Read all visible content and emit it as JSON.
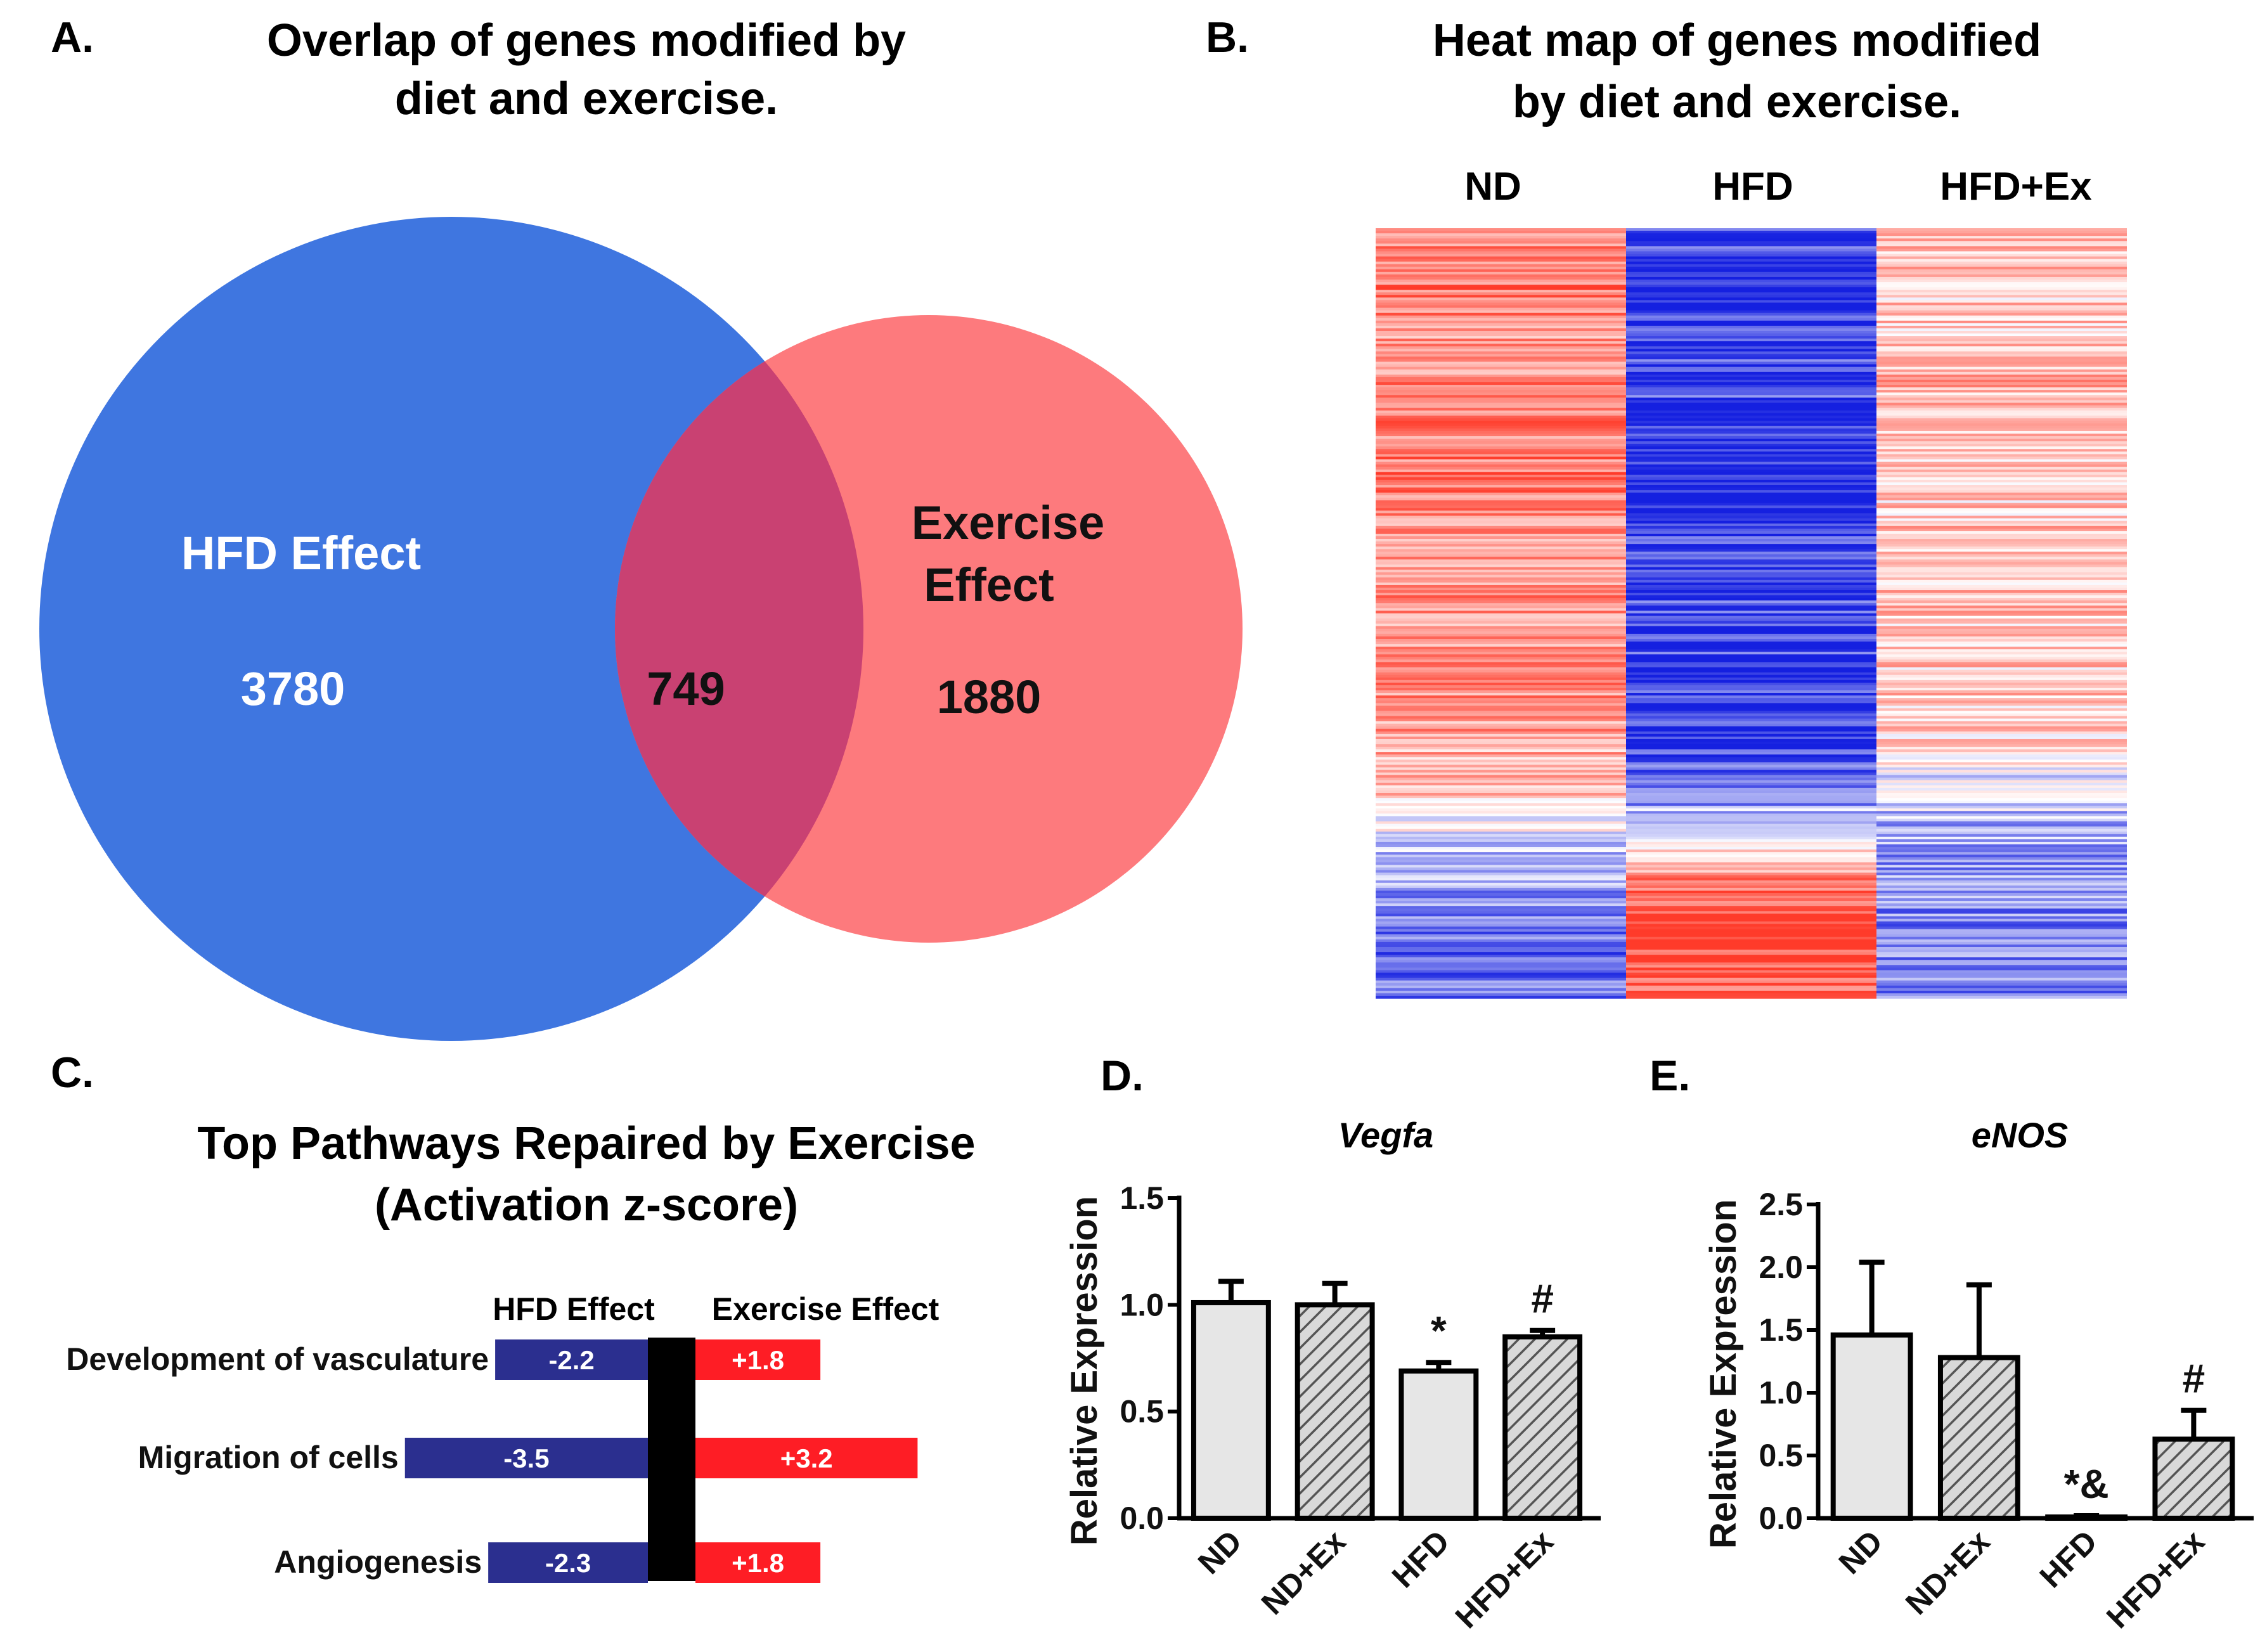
{
  "panels": {
    "A": {
      "letter": "A."
    },
    "B": {
      "letter": "B."
    },
    "C": {
      "letter": "C."
    },
    "D": {
      "letter": "D."
    },
    "E": {
      "letter": "E."
    }
  },
  "chart_data": [
    {
      "type": "venn",
      "title_line1": "Overlap of genes modified by",
      "title_line2": "diet and exercise.",
      "sets": [
        {
          "name": "HFD Effect",
          "color": "#3f76e0",
          "only": "3780"
        },
        {
          "name_line1": "Exercise",
          "name_line2": "Effect",
          "color": "#fd7a7d",
          "only": "1880"
        }
      ],
      "overlap": "749",
      "overlap_color": "#c94172"
    },
    {
      "type": "heatmap",
      "title_line1": "Heat map of genes modified",
      "title_line2": "by diet and exercise.",
      "columns": [
        "ND",
        "HFD",
        "HFD+Ex"
      ],
      "colors": {
        "high": "#ff3b2a",
        "low": "#1520e0",
        "mid": "#ffffff"
      },
      "column_profiles": [
        [
          0.6,
          0.7,
          0.5,
          0.6,
          0.65,
          0.7,
          0.55,
          0.6,
          0.5,
          0.55,
          0.45,
          0.3,
          -0.2,
          -0.5,
          -0.7,
          -0.6
        ],
        [
          -0.8,
          -0.85,
          -0.9,
          -0.7,
          -0.9,
          -0.95,
          -0.85,
          -0.8,
          -0.8,
          -0.85,
          -0.9,
          -0.6,
          0.2,
          0.8,
          0.95,
          0.7
        ],
        [
          0.45,
          0.3,
          0.25,
          0.4,
          0.3,
          0.2,
          0.35,
          0.3,
          0.25,
          0.3,
          0.2,
          -0.2,
          -0.4,
          -0.5,
          -0.55,
          -0.5
        ]
      ]
    },
    {
      "type": "bar",
      "title_line1": "Top Pathways Repaired by Exercise",
      "title_line2": "(Activation z-score)",
      "series": [
        {
          "name": "HFD Effect",
          "color": "#2b2f8f",
          "values": [
            -2.2,
            -3.5,
            -2.3
          ],
          "labels": [
            "-2.2",
            "-3.5",
            "-2.3"
          ]
        },
        {
          "name": "Exercise Effect",
          "color": "#fe1d25",
          "values": [
            1.8,
            3.2,
            1.8
          ],
          "labels": [
            "+1.8",
            "+3.2",
            "+1.8"
          ]
        }
      ],
      "categories": [
        "Development of vasculature",
        "Migration of cells",
        "Angiogenesis"
      ]
    },
    {
      "type": "bar",
      "title": "Vegfa",
      "ylabel": "Relative Expression",
      "ylim": [
        0,
        1.5
      ],
      "yticks": [
        "0.0",
        "0.5",
        "1.0",
        "1.5"
      ],
      "categories": [
        "ND",
        "ND+Ex",
        "HFD",
        "HFD+Ex"
      ],
      "values": [
        1.01,
        1.0,
        0.69,
        0.85
      ],
      "errors": [
        0.1,
        0.1,
        0.04,
        0.03
      ],
      "annotations": [
        "",
        "",
        "*",
        "#"
      ]
    },
    {
      "type": "bar",
      "title": "eNOS",
      "ylabel": "Relative Expression",
      "ylim": [
        0,
        2.5
      ],
      "yticks": [
        "0.0",
        "0.5",
        "1.0",
        "1.5",
        "2.0",
        "2.5"
      ],
      "categories": [
        "ND",
        "ND+Ex",
        "HFD",
        "HFD+Ex"
      ],
      "values": [
        1.46,
        1.28,
        0.01,
        0.63
      ],
      "errors": [
        0.58,
        0.58,
        0.01,
        0.23
      ],
      "annotations": [
        "",
        "",
        "*&",
        "#"
      ]
    }
  ]
}
